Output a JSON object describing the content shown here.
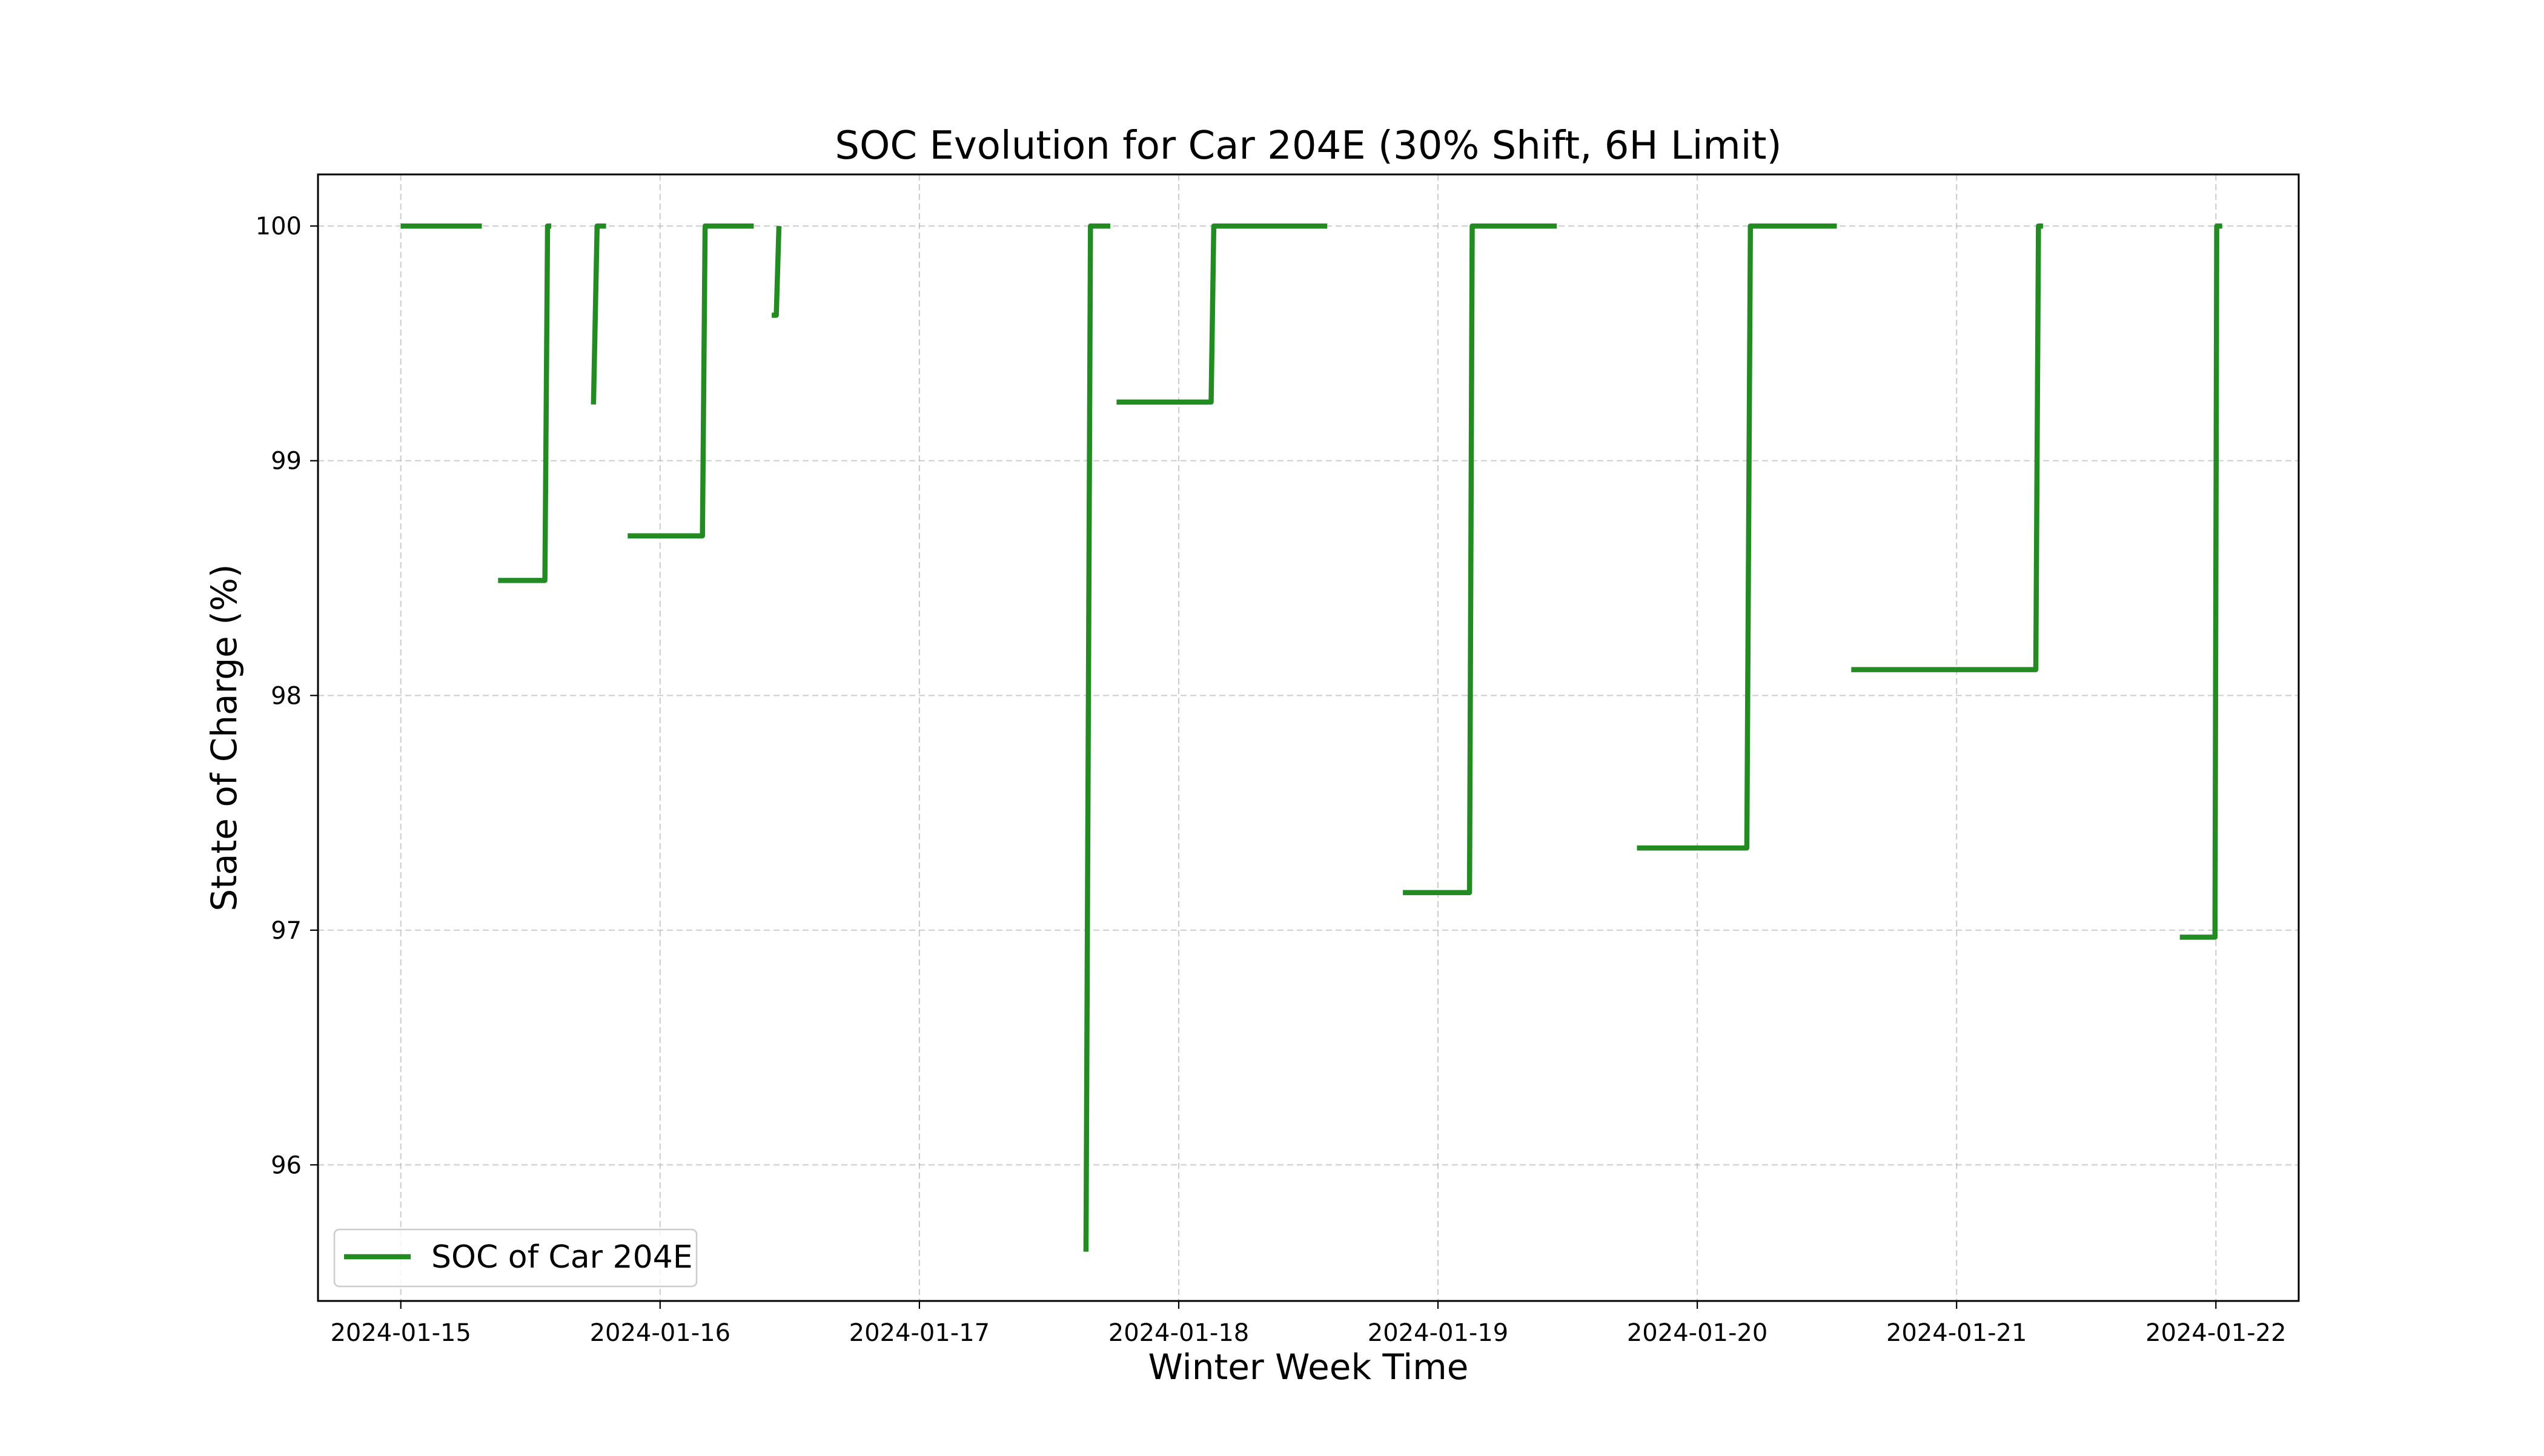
{
  "chart_data": {
    "type": "line",
    "title": "SOC Evolution for Car 204E (30% Shift, 6H Limit)",
    "xlabel": "Winter Week Time",
    "ylabel": "State of Charge (%)",
    "xlim": [
      "2024-01-14T16:20",
      "2024-01-22T07:40"
    ],
    "ylim": [
      95.42,
      100.22
    ],
    "x_ticks": [
      "2024-01-15",
      "2024-01-16",
      "2024-01-17",
      "2024-01-18",
      "2024-01-19",
      "2024-01-20",
      "2024-01-21",
      "2024-01-22"
    ],
    "y_ticks": [
      96,
      97,
      98,
      99,
      100
    ],
    "grid": true,
    "legend_position": "lower-left",
    "series": [
      {
        "name": "SOC of Car 204E",
        "color": "#228b22",
        "segments": [
          [
            [
              "2024-01-15T00:00",
              100.0
            ],
            [
              "2024-01-15T07:30",
              100.0
            ]
          ],
          [
            [
              "2024-01-15T09:00",
              98.49
            ],
            [
              "2024-01-15T13:20",
              98.49
            ],
            [
              "2024-01-15T13:35",
              100.0
            ],
            [
              "2024-01-15T13:55",
              100.0
            ]
          ],
          [
            [
              "2024-01-15T17:50",
              99.24
            ],
            [
              "2024-01-15T18:10",
              100.0
            ],
            [
              "2024-01-15T19:00",
              100.0
            ]
          ],
          [
            [
              "2024-01-15T21:00",
              98.68
            ],
            [
              "2024-01-16T03:55",
              98.68
            ],
            [
              "2024-01-16T04:10",
              100.0
            ],
            [
              "2024-01-16T08:40",
              100.0
            ]
          ],
          [
            [
              "2024-01-16T10:20",
              99.62
            ],
            [
              "2024-01-16T10:45",
              99.62
            ],
            [
              "2024-01-16T11:00",
              100.0
            ]
          ],
          [
            [
              "2024-01-17T15:25",
              95.63
            ],
            [
              "2024-01-17T15:50",
              100.0
            ],
            [
              "2024-01-17T17:40",
              100.0
            ]
          ],
          [
            [
              "2024-01-17T18:15",
              99.25
            ],
            [
              "2024-01-18T03:00",
              99.25
            ],
            [
              "2024-01-18T03:15",
              100.0
            ],
            [
              "2024-01-18T13:45",
              100.0
            ]
          ],
          [
            [
              "2024-01-18T20:45",
              97.16
            ],
            [
              "2024-01-19T02:55",
              97.16
            ],
            [
              "2024-01-19T03:10",
              100.0
            ],
            [
              "2024-01-19T11:00",
              100.0
            ]
          ],
          [
            [
              "2024-01-19T18:25",
              97.35
            ],
            [
              "2024-01-20T04:35",
              97.35
            ],
            [
              "2024-01-20T04:55",
              100.0
            ],
            [
              "2024-01-20T12:55",
              100.0
            ]
          ],
          [
            [
              "2024-01-20T14:15",
              98.11
            ],
            [
              "2024-01-21T07:20",
              98.11
            ],
            [
              "2024-01-21T07:35",
              100.0
            ],
            [
              "2024-01-21T08:00",
              100.0
            ]
          ],
          [
            [
              "2024-01-21T20:40",
              96.97
            ],
            [
              "2024-01-21T23:55",
              96.97
            ],
            [
              "2024-01-22T00:05",
              100.0
            ],
            [
              "2024-01-22T00:35",
              100.0
            ]
          ]
        ]
      }
    ]
  }
}
